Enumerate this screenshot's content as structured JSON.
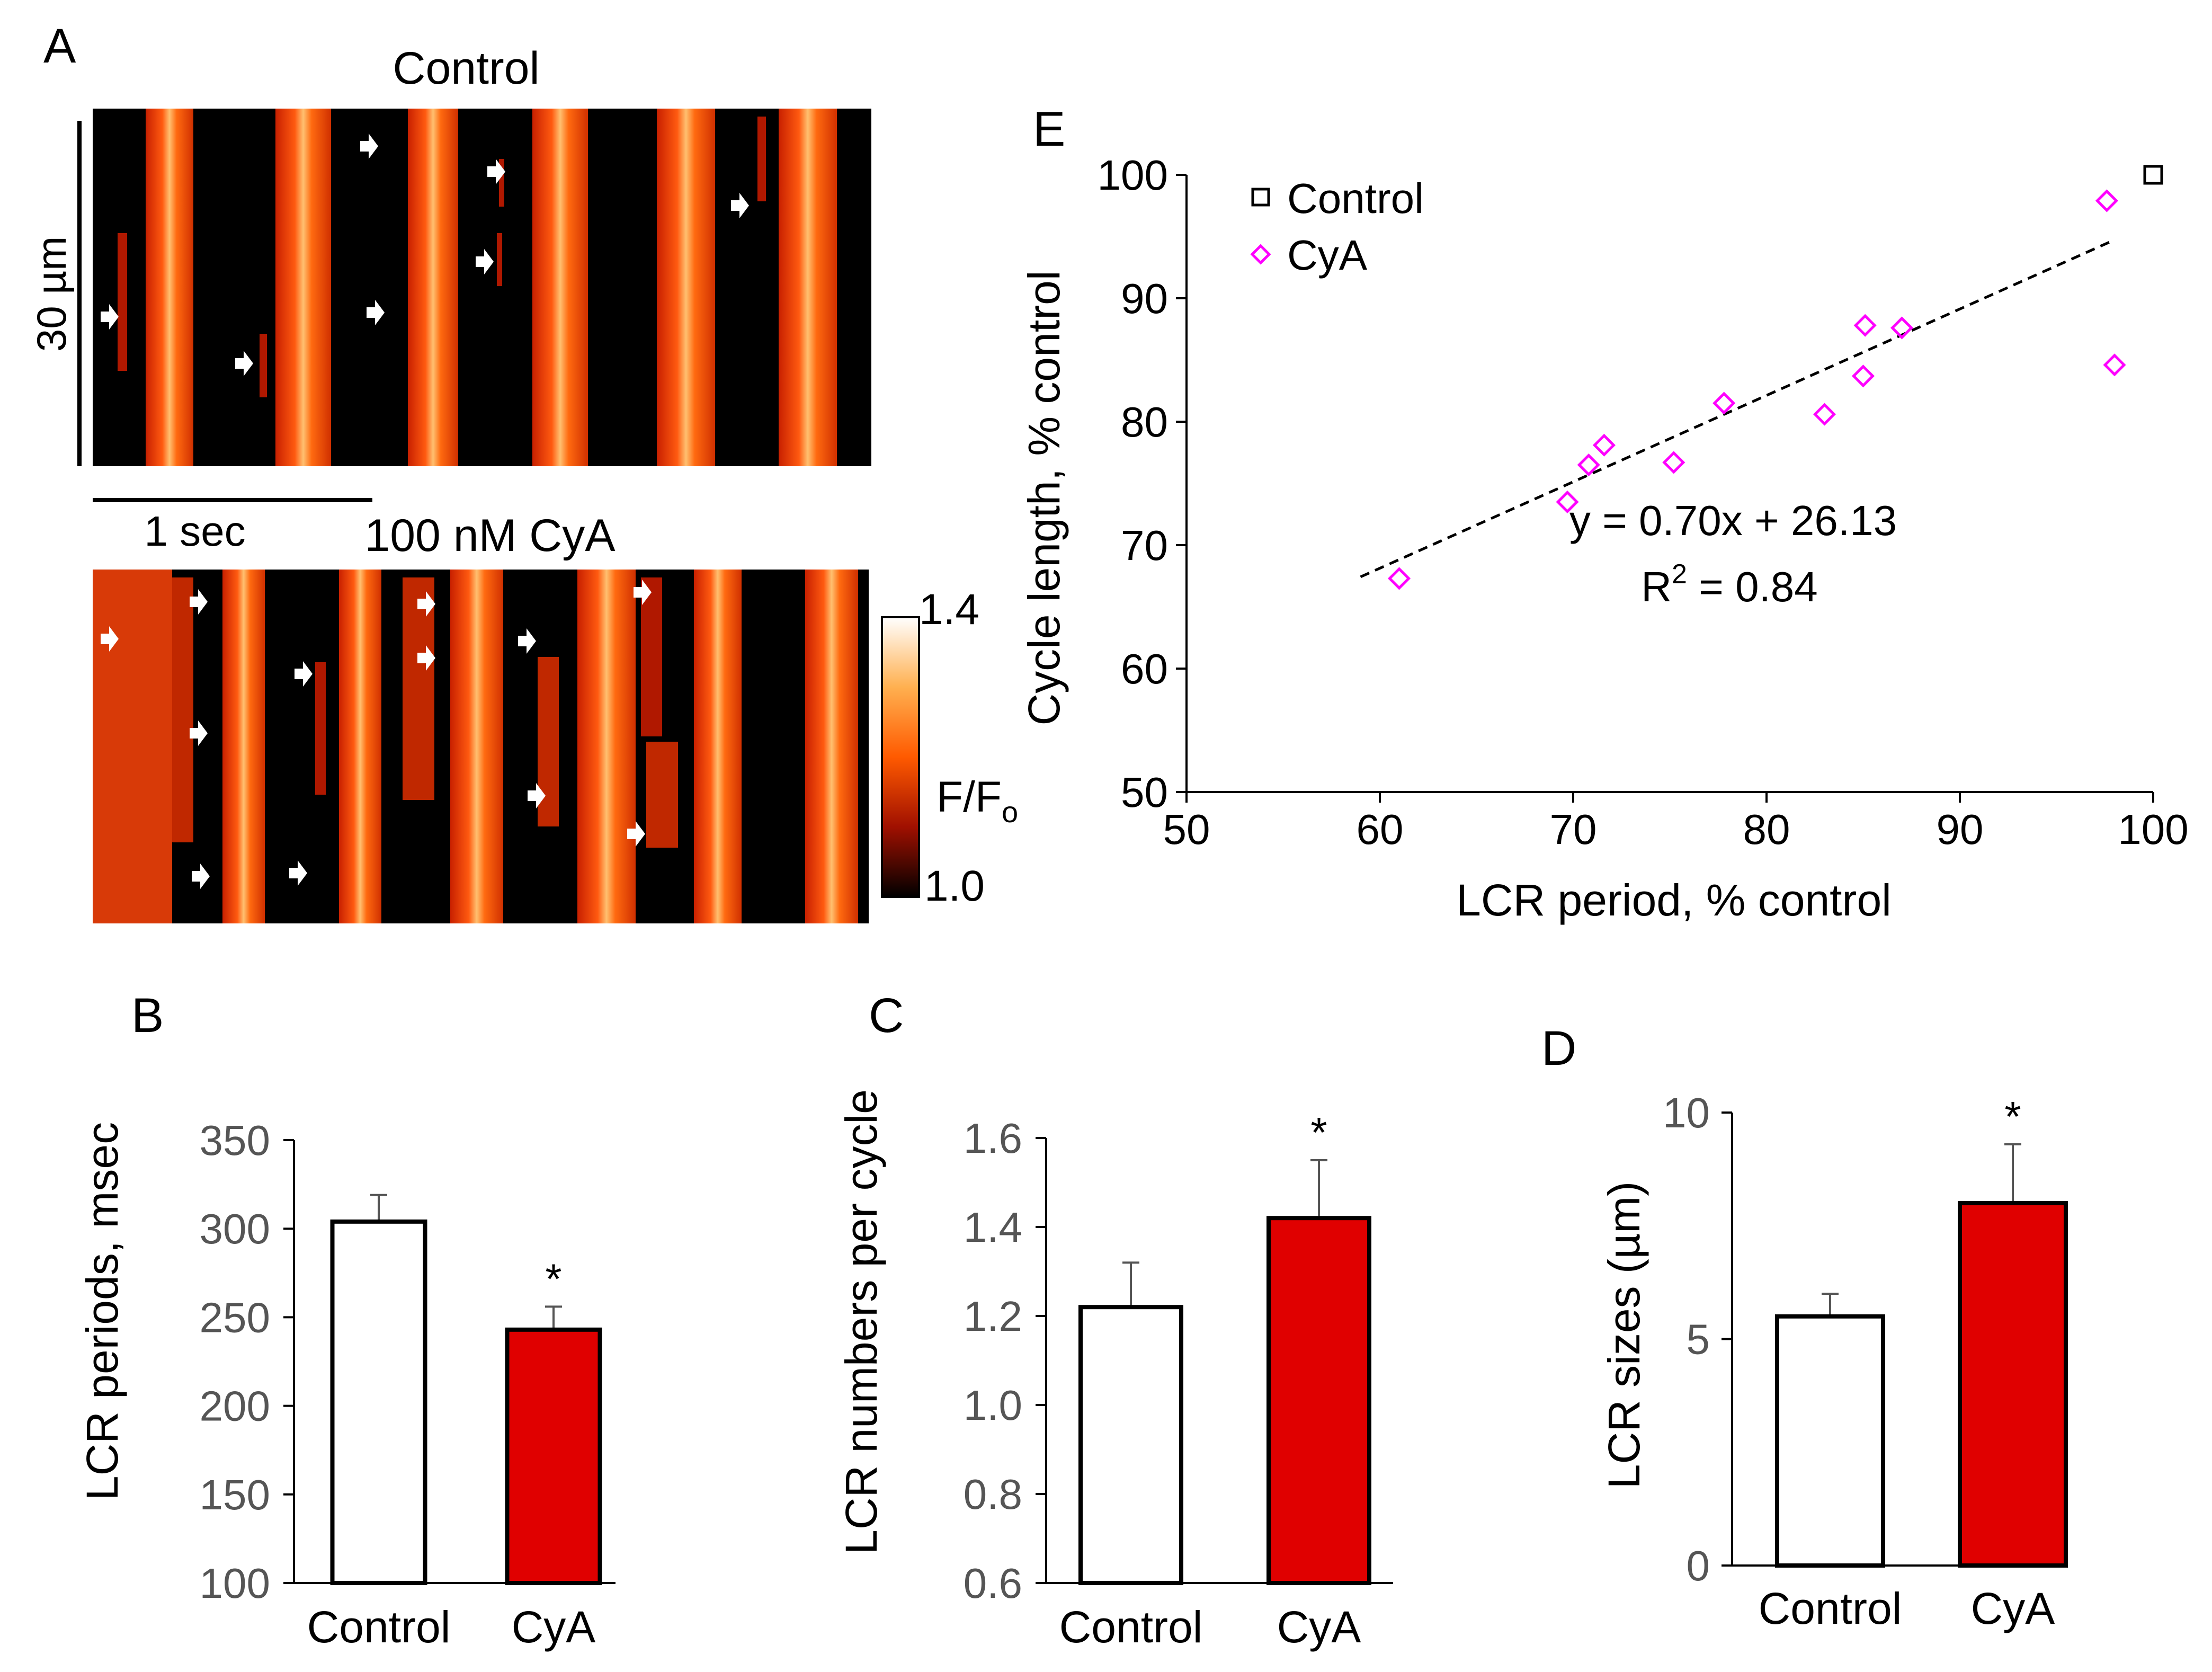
{
  "panel_a": {
    "letter": "A",
    "top_title": "Control",
    "bottom_title": "100 nM CyA",
    "space_scale": "30 µm",
    "time_scale": "1 sec",
    "colorbar": {
      "max": "1.4",
      "min": "1.0",
      "label": "F/F",
      "label_sub": "o"
    },
    "colors": {
      "background": "#000000",
      "band": "#e8400c",
      "band_core": "#ffd080",
      "arrow": "#ffffff"
    }
  },
  "chart_data": [
    {
      "id": "B",
      "type": "bar",
      "letter": "B",
      "categories": [
        "Control",
        "CyA"
      ],
      "values": [
        304,
        243
      ],
      "errors": [
        15,
        13
      ],
      "ylabel": "LCR periods, msec",
      "ylim": [
        100,
        350
      ],
      "yticks": [
        "100",
        "150",
        "200",
        "250",
        "300",
        "350"
      ],
      "significance": [
        "",
        "*"
      ],
      "colors": [
        "#ffffff",
        "#e00000"
      ]
    },
    {
      "id": "C",
      "type": "bar",
      "letter": "C",
      "categories": [
        "Control",
        "CyA"
      ],
      "values": [
        1.22,
        1.42
      ],
      "errors": [
        0.1,
        0.13
      ],
      "ylabel": "LCR numbers per cycle",
      "ylim": [
        0.6,
        1.6
      ],
      "yticks": [
        "0.6",
        "0.8",
        "1.0",
        "1.2",
        "1.4",
        "1.6"
      ],
      "significance": [
        "",
        "*"
      ],
      "colors": [
        "#ffffff",
        "#e00000"
      ]
    },
    {
      "id": "D",
      "type": "bar",
      "letter": "D",
      "categories": [
        "Control",
        "CyA"
      ],
      "values": [
        5.5,
        8.0
      ],
      "errors": [
        0.5,
        1.3
      ],
      "ylabel": "LCR sizes (µm)",
      "ylim": [
        0,
        10
      ],
      "yticks": [
        "0",
        "5",
        "10"
      ],
      "significance": [
        "",
        "*"
      ],
      "colors": [
        "#ffffff",
        "#e00000"
      ]
    },
    {
      "id": "E",
      "type": "scatter",
      "letter": "E",
      "xlabel": "LCR period, % control",
      "ylabel": "Cycle length, % control",
      "xlim": [
        50,
        100
      ],
      "ylim": [
        50,
        100
      ],
      "xticks": [
        "50",
        "60",
        "70",
        "80",
        "90",
        "100"
      ],
      "yticks": [
        "50",
        "60",
        "70",
        "80",
        "90",
        "100"
      ],
      "legend_position": "top-left",
      "series": [
        {
          "name": "Control",
          "marker": "square",
          "color": "#000000",
          "points": [
            [
              100,
              100
            ]
          ]
        },
        {
          "name": "CyA",
          "marker": "diamond",
          "color": "#ff00ff",
          "points": [
            [
              61,
              67.3
            ],
            [
              69.7,
              73.5
            ],
            [
              70.8,
              76.5
            ],
            [
              71.6,
              78.1
            ],
            [
              75.2,
              76.7
            ],
            [
              77.8,
              81.5
            ],
            [
              83,
              80.6
            ],
            [
              85,
              83.7
            ],
            [
              85.1,
              87.8
            ],
            [
              87,
              87.6
            ],
            [
              97.6,
              97.9
            ],
            [
              98,
              84.6
            ]
          ]
        }
      ],
      "trendline": {
        "slope": 0.7,
        "intercept": 26.13,
        "x_range": [
          59,
          98
        ]
      },
      "equation": "y = 0.70x + 26.13",
      "r2_prefix": "R",
      "r2_sup": "2",
      "r2_suffix": " = 0.84"
    }
  ]
}
